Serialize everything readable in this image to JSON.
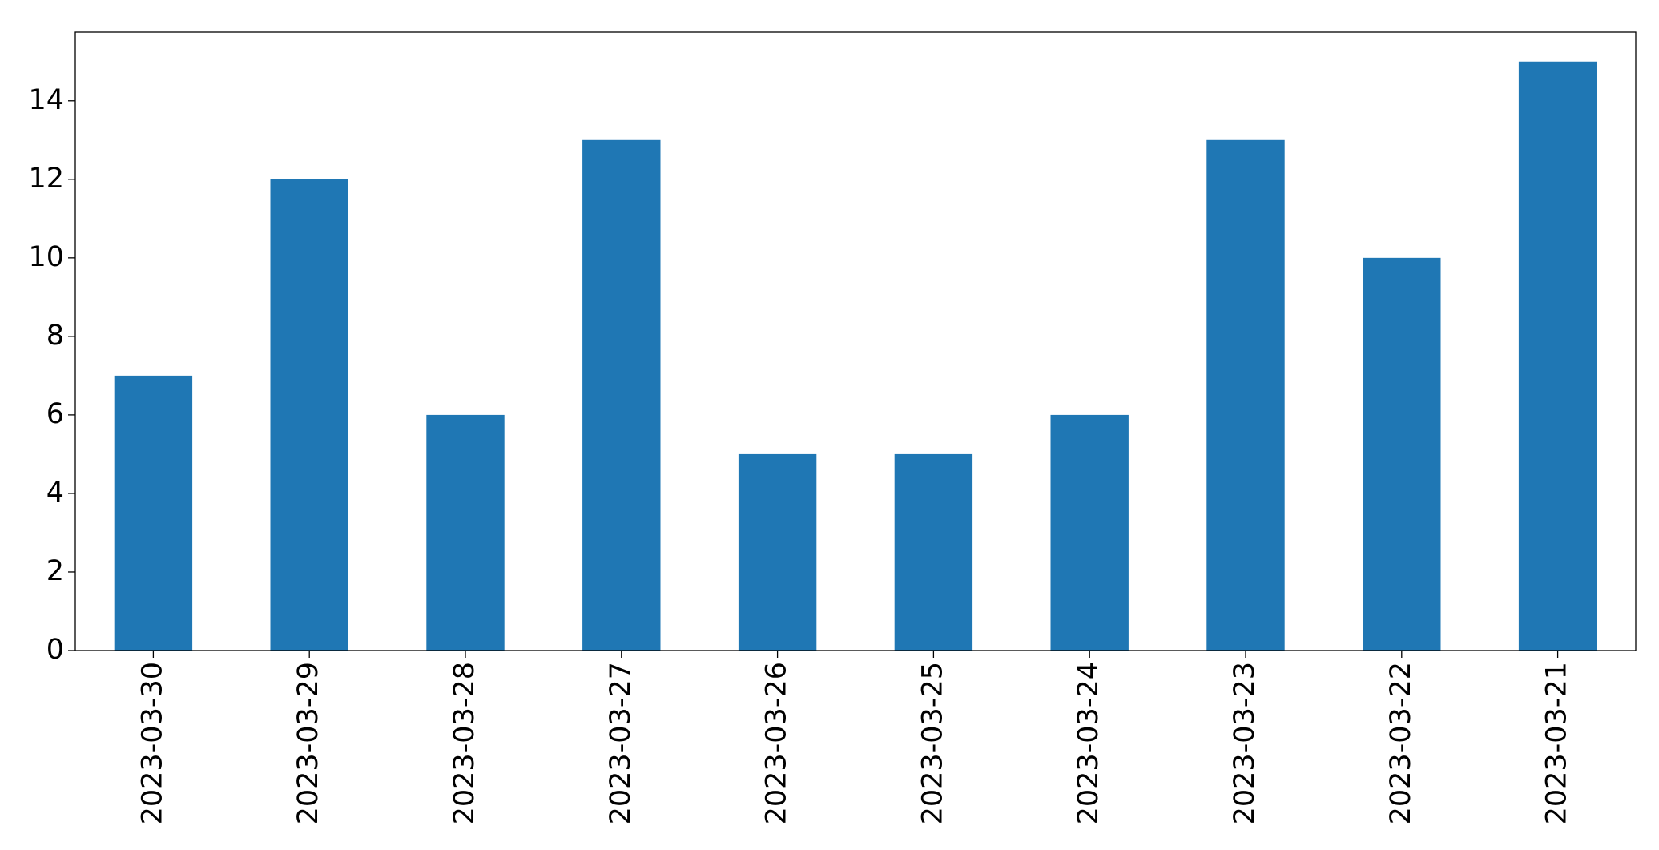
{
  "chart_data": {
    "type": "bar",
    "categories": [
      "2023-03-30",
      "2023-03-29",
      "2023-03-28",
      "2023-03-27",
      "2023-03-26",
      "2023-03-25",
      "2023-03-24",
      "2023-03-23",
      "2023-03-22",
      "2023-03-21"
    ],
    "values": [
      7,
      12,
      6,
      13,
      5,
      5,
      6,
      13,
      10,
      15
    ],
    "color": "#1f77b4",
    "ylim": [
      0,
      15.75
    ],
    "yticks": [
      0,
      2,
      4,
      6,
      8,
      10,
      12,
      14
    ],
    "grid": false
  }
}
